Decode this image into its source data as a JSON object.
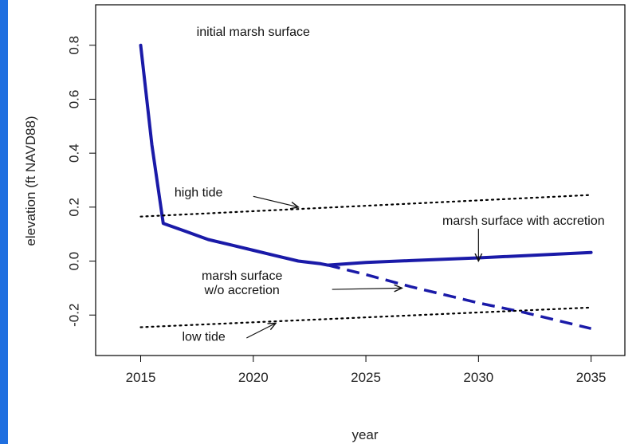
{
  "chart_data": {
    "type": "line",
    "title": "",
    "xlabel": "year",
    "ylabel": "elevation (ft NAVD88)",
    "xlim": [
      2013,
      2036.5
    ],
    "ylim": [
      -0.35,
      0.95
    ],
    "xticks": [
      2015,
      2020,
      2025,
      2030,
      2035
    ],
    "yticks": [
      -0.2,
      0.0,
      0.2,
      0.4,
      0.6,
      0.8
    ],
    "ytick_labels": [
      "-0.2",
      "0.0",
      "0.2",
      "0.4",
      "0.6",
      "0.8"
    ],
    "grid": false,
    "series": [
      {
        "style": "solid-thick",
        "color": "#1a1aa8",
        "x": [
          2015,
          2015.5,
          2016,
          2017,
          2018,
          2019,
          2020,
          2021,
          2022,
          2023,
          2023.3,
          2025,
          2027,
          2030,
          2035
        ],
        "y": [
          0.8,
          0.43,
          0.14,
          0.11,
          0.08,
          0.06,
          0.04,
          0.02,
          0.0,
          -0.01,
          -0.015,
          -0.005,
          0.002,
          0.012,
          0.032
        ]
      },
      {
        "style": "dashed-thick",
        "color": "#1a1aa8",
        "x": [
          2023.3,
          2025,
          2027,
          2030,
          2032,
          2035
        ],
        "y": [
          -0.015,
          -0.05,
          -0.095,
          -0.155,
          -0.19,
          -0.25
        ]
      },
      {
        "style": "dotted",
        "color": "#000000",
        "x": [
          2015,
          2035
        ],
        "y": [
          0.165,
          0.245
        ]
      },
      {
        "style": "dotted",
        "color": "#000000",
        "x": [
          2015,
          2035
        ],
        "y": [
          -0.245,
          -0.172
        ]
      }
    ],
    "annotations": [
      {
        "text": "initial marsh surface",
        "x": 2020.0,
        "y": 0.835,
        "anchor": "middle"
      },
      {
        "text": "high tide",
        "x": 2016.5,
        "y": 0.24,
        "anchor": "start",
        "arrow_from": [
          2020.0,
          0.24
        ],
        "arrow_to": [
          2022.0,
          0.2
        ]
      },
      {
        "text": "marsh surface with accretion",
        "x": 2032.0,
        "y": 0.135,
        "anchor": "middle",
        "arrow_from": [
          2030.0,
          0.12
        ],
        "arrow_to": [
          2030.0,
          0.0
        ]
      },
      {
        "lines": [
          "marsh surface",
          "w/o accretion"
        ],
        "x": 2019.5,
        "y": -0.07,
        "anchor": "middle",
        "arrow_from": [
          2023.5,
          -0.105
        ],
        "arrow_to": [
          2026.6,
          -0.1
        ]
      },
      {
        "text": "low tide",
        "x": 2017.8,
        "y": -0.295,
        "anchor": "middle",
        "arrow_from": [
          2019.7,
          -0.285
        ],
        "arrow_to": [
          2021.0,
          -0.23
        ]
      }
    ]
  }
}
